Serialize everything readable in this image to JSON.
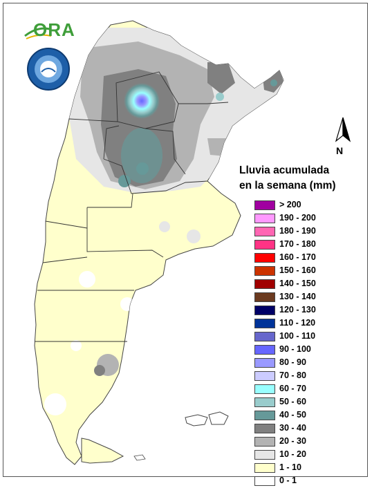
{
  "legend": {
    "title_line1": "Lluvia acumulada",
    "title_line2": "en la semana (mm)",
    "items": [
      {
        "label": "> 200",
        "color": "#a000a0"
      },
      {
        "label": "190 - 200",
        "color": "#ff99ff"
      },
      {
        "label": "180 - 190",
        "color": "#ff66b3"
      },
      {
        "label": "170 - 180",
        "color": "#ff3385"
      },
      {
        "label": "160 - 170",
        "color": "#ff0000"
      },
      {
        "label": "150 - 160",
        "color": "#cc3300"
      },
      {
        "label": "140 - 150",
        "color": "#a00000"
      },
      {
        "label": "130 - 140",
        "color": "#6b3a1f"
      },
      {
        "label": "120 - 130",
        "color": "#000066"
      },
      {
        "label": "110 - 120",
        "color": "#003399"
      },
      {
        "label": "100 - 110",
        "color": "#6666cc"
      },
      {
        "label": "90 - 100",
        "color": "#6666ff"
      },
      {
        "label": "80 - 90",
        "color": "#9999ff"
      },
      {
        "label": "70 - 80",
        "color": "#ccccff"
      },
      {
        "label": "60 - 70",
        "color": "#99ffff"
      },
      {
        "label": "50 - 60",
        "color": "#99cccc"
      },
      {
        "label": "40 - 50",
        "color": "#669999"
      },
      {
        "label": "30 - 40",
        "color": "#808080"
      },
      {
        "label": "20 - 30",
        "color": "#b3b3b3"
      },
      {
        "label": "10 - 20",
        "color": "#e6e6e6"
      },
      {
        "label": "1 - 10",
        "color": "#ffffcc"
      },
      {
        "label": "0 - 1",
        "color": "#ffffff"
      }
    ]
  },
  "north_arrow": {
    "label": "N"
  },
  "logo": {
    "text": "ORA"
  }
}
